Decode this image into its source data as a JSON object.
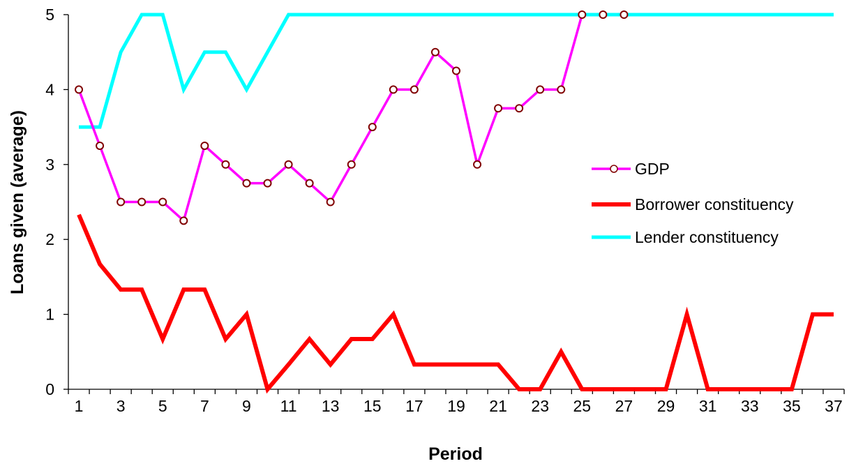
{
  "chart_data": {
    "type": "line",
    "title": "",
    "xlabel": "Period",
    "ylabel": "Loans given (average)",
    "xlim": [
      1,
      37
    ],
    "ylim": [
      0,
      5
    ],
    "x_tick_labels": [
      "1",
      "3",
      "5",
      "7",
      "9",
      "11",
      "13",
      "15",
      "17",
      "19",
      "21",
      "23",
      "25",
      "27",
      "29",
      "31",
      "33",
      "35",
      "37"
    ],
    "y_tick_labels": [
      "0",
      "1",
      "2",
      "3",
      "4",
      "5"
    ],
    "grid": false,
    "legend_position": "right",
    "series": [
      {
        "name": "GDP",
        "color": "#ff00ff",
        "marker_fill": "#ffffff",
        "marker_edge": "#800000",
        "x": [
          1,
          2,
          3,
          4,
          5,
          6,
          7,
          8,
          9,
          10,
          11,
          12,
          13,
          14,
          15,
          16,
          17,
          18,
          19,
          20,
          21,
          22,
          23,
          24,
          25,
          26,
          27
        ],
        "values": [
          4,
          3.25,
          2.5,
          2.5,
          2.5,
          2.25,
          3.25,
          3,
          2.75,
          2.75,
          3,
          2.75,
          2.5,
          3,
          3.5,
          4,
          4,
          4.5,
          4.25,
          3,
          3.75,
          3.75,
          4,
          4,
          5,
          5,
          5
        ],
        "connected_through": 25
      },
      {
        "name": "Borrower constituency",
        "color": "#ff0000",
        "x": [
          1,
          2,
          3,
          4,
          5,
          6,
          7,
          8,
          9,
          10,
          11,
          12,
          13,
          14,
          15,
          16,
          17,
          18,
          19,
          20,
          21,
          22,
          23,
          24,
          25,
          26,
          27,
          28,
          29,
          30,
          31,
          32,
          33,
          34,
          35,
          36,
          37
        ],
        "values": [
          2.33,
          1.67,
          1.33,
          1.33,
          0.67,
          1.33,
          1.33,
          0.67,
          1,
          0,
          0.33,
          0.67,
          0.33,
          0.67,
          0.67,
          1,
          0.33,
          0.33,
          0.33,
          0.33,
          0.33,
          0,
          0,
          0.5,
          0,
          0,
          0,
          0,
          0,
          1,
          0,
          0,
          0,
          0,
          0,
          1,
          1
        ]
      },
      {
        "name": "Lender constituency",
        "color": "#00ffff",
        "x": [
          1,
          2,
          3,
          4,
          5,
          6,
          7,
          8,
          9,
          10,
          11,
          12,
          13,
          14,
          15,
          16,
          17,
          18,
          19,
          20,
          21,
          22,
          23,
          24,
          25,
          26,
          27,
          28,
          29,
          30,
          31,
          32,
          33,
          34,
          35,
          36,
          37
        ],
        "values": [
          3.5,
          3.5,
          4.5,
          5,
          5,
          4,
          4.5,
          4.5,
          4,
          4.5,
          5,
          5,
          5,
          5,
          5,
          5,
          5,
          5,
          5,
          5,
          5,
          5,
          5,
          5,
          5,
          5,
          5,
          5,
          5,
          5,
          5,
          5,
          5,
          5,
          5,
          5,
          5
        ]
      }
    ]
  }
}
